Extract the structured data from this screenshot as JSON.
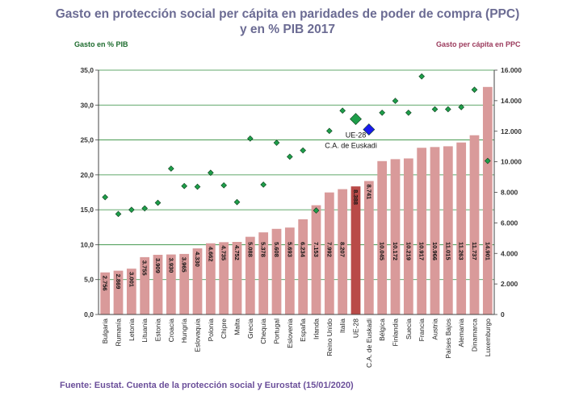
{
  "title_line1": "Gasto en protección social per cápita en paridades de poder de compra (PPC)",
  "title_line2": "y en % PIB 2017",
  "left_axis_title": "Gasto en % PIB",
  "right_axis_title": "Gasto per cápita en PPC",
  "source": "Fuente: Eustat. Cuenta de la protección social y Eurostat (15/01/2020)",
  "colors": {
    "bar": "#d99a9a",
    "bar_highlight": "#b94a48",
    "diamond": "#1e9e4a",
    "grid": "#2e8b3a",
    "euskadi": "#1a1aee"
  },
  "chart_data": {
    "type": "bar",
    "categories": [
      "Bulgaria",
      "Rumanía",
      "Letonia",
      "Lituania",
      "Estonia",
      "Croacia",
      "Hungría",
      "Eslovaquia",
      "Polonia",
      "Chipre",
      "Malta",
      "Grecia",
      "Chequia",
      "Portugal",
      "Eslovenia",
      "España",
      "Irlanda",
      "Reino Unido",
      "Italia",
      "UE-28",
      "C.A. de Euskadi",
      "Bélgica",
      "Finlandia",
      "Suecia",
      "Francia",
      "Austria",
      "Países Bajos",
      "Alemania",
      "Dinamarca",
      "Luxemburgo"
    ],
    "series": [
      {
        "axis": "right",
        "values": [
          2756,
          2869,
          3001,
          3755,
          3909,
          3930,
          3965,
          4330,
          4662,
          4735,
          4752,
          5088,
          5378,
          5608,
          5693,
          6234,
          7153,
          7992,
          8207,
          8388,
          8741,
          10045,
          10172,
          10219,
          10917,
          10966,
          11015,
          11263,
          11737,
          14901
        ],
        "labels": [
          "2.756",
          "2.869",
          "3.001",
          "3.755",
          "3.909",
          "3.930",
          "3.965",
          "4.330",
          "4.662",
          "4.735",
          "4.752",
          "5.088",
          "5.378",
          "5.608",
          "5.693",
          "6.234",
          "7.153",
          "7.992",
          "8.207",
          "8.388",
          "8.741",
          "10.045",
          "10.172",
          "10.219",
          "10.917",
          "10.966",
          "11.015",
          "11.263",
          "11.737",
          "14.901"
        ]
      },
      {
        "axis": "left",
        "type": "scatter",
        "values": [
          16.8,
          14.4,
          15.0,
          15.2,
          16.0,
          20.9,
          18.4,
          18.3,
          20.3,
          18.5,
          16.1,
          25.2,
          18.6,
          24.6,
          22.6,
          23.5,
          14.9,
          26.3,
          29.2,
          28.0,
          26.5,
          28.9,
          30.6,
          28.9,
          34.1,
          29.4,
          29.4,
          29.7,
          32.2,
          22.0
        ]
      }
    ],
    "highlights": {
      "UE-28": "#b94a48",
      "C.A. de Euskadi": "#d99a9a"
    },
    "annotations": [
      {
        "text": "UE-28",
        "category": "UE-28"
      },
      {
        "text": "C.A. de Euskadi",
        "category": "C.A. de Euskadi"
      }
    ],
    "left_axis": {
      "ylim": [
        0,
        35
      ],
      "ticks": [
        "0,0",
        "5,0",
        "10,0",
        "15,0",
        "20,0",
        "25,0",
        "30,0",
        "35,0"
      ]
    },
    "right_axis": {
      "ylim": [
        0,
        16000
      ],
      "ticks": [
        "0",
        "2.000",
        "4.000",
        "6.000",
        "8.000",
        "10.000",
        "12.000",
        "14.000",
        "16.000"
      ]
    },
    "grid": true
  }
}
